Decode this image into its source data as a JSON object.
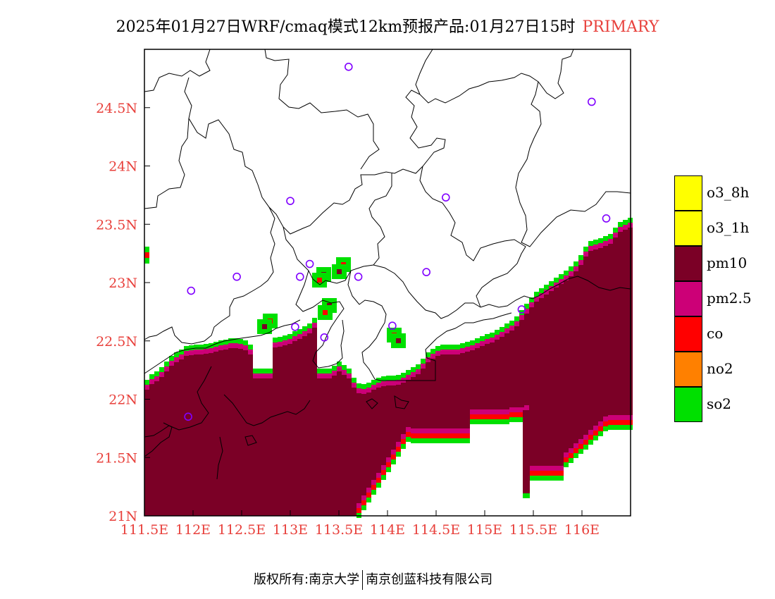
{
  "title": {
    "main": "2025年01月27日WRF/cmaq模式12km预报产品:01月27日15时",
    "tag": "PRIMARY"
  },
  "map": {
    "lon_range": [
      111.5,
      116.5
    ],
    "lat_range": [
      21.0,
      25.0
    ],
    "x_ticks": [
      "111.5E",
      "112E",
      "112.5E",
      "113E",
      "113.5E",
      "114E",
      "114.5E",
      "115E",
      "115.5E",
      "116E"
    ],
    "y_ticks": [
      "21N",
      "21.5N",
      "22N",
      "22.5N",
      "23N",
      "23.5N",
      "24N",
      "24.5N"
    ],
    "colors": {
      "pm10": "#7b0026",
      "pm2_5": "#cc0077",
      "co": "#ff0000",
      "no2": "#ff8000",
      "so2": "#00e000",
      "o3": "#ffff00",
      "station": "#8000ff",
      "axis_text": "#e8413c"
    },
    "stations": [
      {
        "lon": 113.6,
        "lat": 24.85
      },
      {
        "lon": 116.1,
        "lat": 24.55
      },
      {
        "lon": 113.0,
        "lat": 23.7
      },
      {
        "lon": 114.6,
        "lat": 23.73
      },
      {
        "lon": 116.25,
        "lat": 23.55
      },
      {
        "lon": 113.2,
        "lat": 23.16
      },
      {
        "lon": 112.45,
        "lat": 23.05
      },
      {
        "lon": 113.1,
        "lat": 23.05
      },
      {
        "lon": 113.7,
        "lat": 23.05
      },
      {
        "lon": 114.4,
        "lat": 23.09
      },
      {
        "lon": 111.98,
        "lat": 22.93
      },
      {
        "lon": 115.38,
        "lat": 22.77
      },
      {
        "lon": 113.05,
        "lat": 22.62
      },
      {
        "lon": 113.35,
        "lat": 22.53
      },
      {
        "lon": 114.05,
        "lat": 22.63
      },
      {
        "lon": 111.95,
        "lat": 21.85
      }
    ]
  },
  "legend": [
    {
      "label": "o3_8h",
      "color": "#ffff00"
    },
    {
      "label": "o3_1h",
      "color": "#ffff00"
    },
    {
      "label": "pm10",
      "color": "#7b0026"
    },
    {
      "label": "pm2.5",
      "color": "#cc0077"
    },
    {
      "label": "co",
      "color": "#ff0000"
    },
    {
      "label": "no2",
      "color": "#ff8000"
    },
    {
      "label": "so2",
      "color": "#00e000"
    }
  ],
  "footer": {
    "left": "版权所有:南京大学",
    "right": "南京创蓝科技有限公司"
  }
}
